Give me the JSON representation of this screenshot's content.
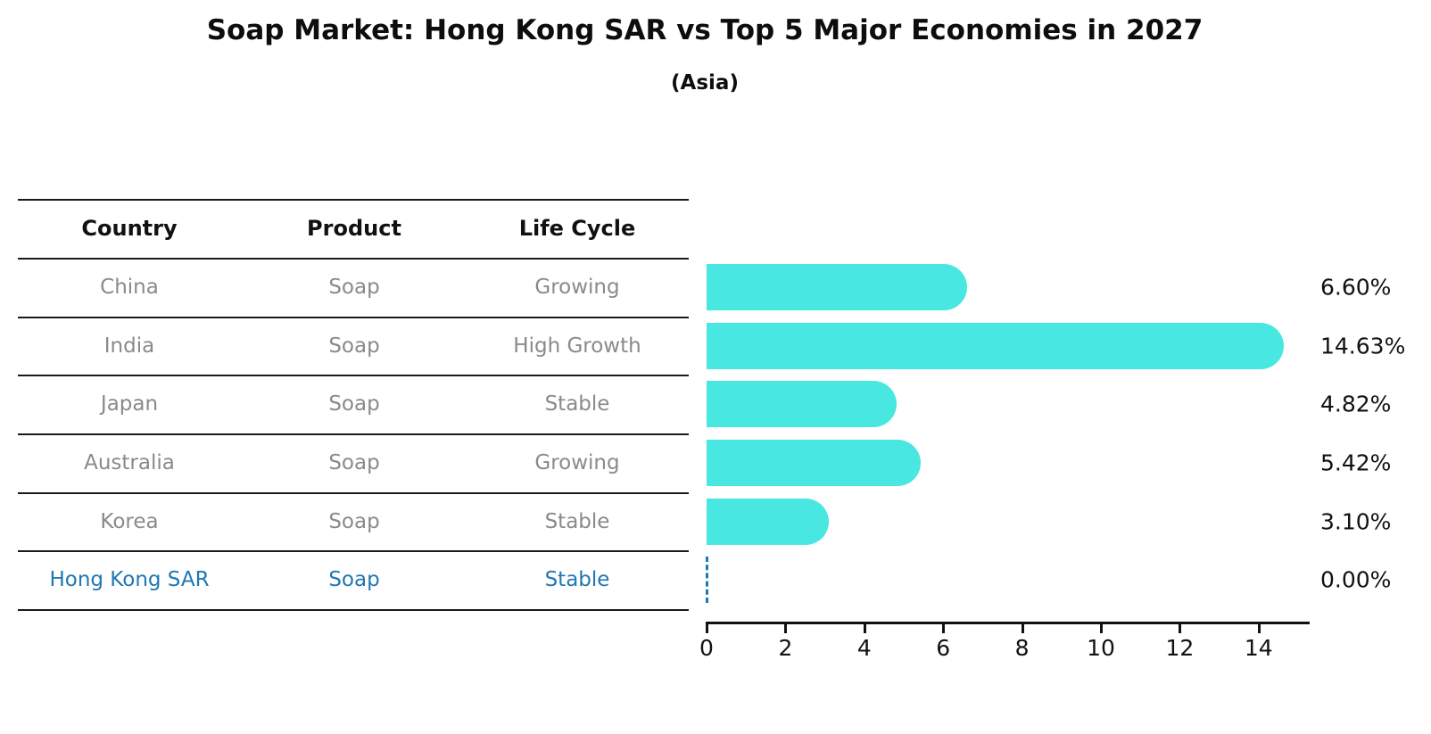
{
  "title": "Soap Market: Hong Kong SAR vs Top 5 Major Economies in 2027",
  "subtitle": "(Asia)",
  "table": {
    "headers": [
      "Country",
      "Product",
      "Life Cycle"
    ],
    "rows": [
      {
        "country": "China",
        "product": "Soap",
        "life_cycle": "Growing",
        "highlight": false
      },
      {
        "country": "India",
        "product": "Soap",
        "life_cycle": "High Growth",
        "highlight": false
      },
      {
        "country": "Japan",
        "product": "Soap",
        "life_cycle": "Stable",
        "highlight": false
      },
      {
        "country": "Australia",
        "product": "Soap",
        "life_cycle": "Growing",
        "highlight": false
      },
      {
        "country": "Korea",
        "product": "Soap",
        "life_cycle": "Stable",
        "highlight": false
      },
      {
        "country": "Hong Kong SAR",
        "product": "Soap",
        "life_cycle": "Stable",
        "highlight": true
      }
    ]
  },
  "chart_data": {
    "type": "bar",
    "orientation": "horizontal",
    "title": "Soap Market: Hong Kong SAR vs Top 5 Major Economies in 2027",
    "subtitle": "(Asia)",
    "categories": [
      "China",
      "India",
      "Japan",
      "Australia",
      "Korea",
      "Hong Kong SAR"
    ],
    "values": [
      6.6,
      14.63,
      4.82,
      5.42,
      3.1,
      0.0
    ],
    "value_labels": [
      "6.60%",
      "14.63%",
      "4.82%",
      "5.42%",
      "3.10%",
      "0.00%"
    ],
    "xticks": [
      0,
      2,
      4,
      6,
      8,
      10,
      12,
      14
    ],
    "xlim": [
      0,
      15.3
    ],
    "xlabel": "",
    "ylabel": "",
    "grid": false,
    "legend": false,
    "bar_color": "#48e7e1",
    "highlight_color": "#1f77b4",
    "highlight_index": 5,
    "zero_value_style": "dashed-line"
  },
  "colors": {
    "bar_cyan": "#48e7e1",
    "highlight_blue": "#1f77b4",
    "table_text_gray": "#8a8a8a",
    "header_text": "#111111",
    "separator_line": "#1a1a1a"
  }
}
